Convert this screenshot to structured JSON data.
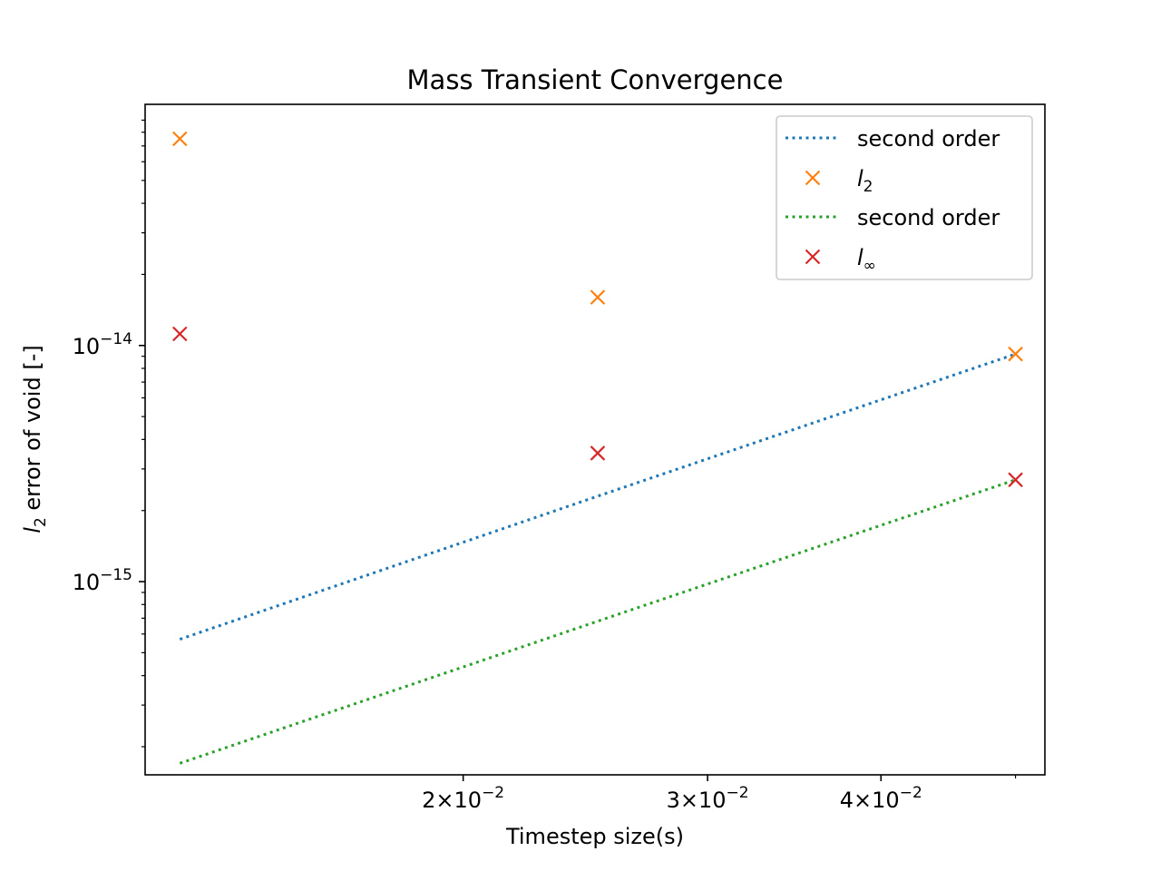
{
  "chart_data": {
    "type": "scatter",
    "title": "Mass Transient Convergence",
    "xlabel": "Timestep size(s)",
    "ylabel_symbol": "l",
    "ylabel_sub": "2",
    "ylabel_rest": " error of void [-]",
    "xscale": "log",
    "yscale": "log",
    "xlim": [
      0.0118,
      0.0525
    ],
    "ylim": [
      1.52e-16,
      1.05e-13
    ],
    "x_ticks": [
      {
        "value": 0.02,
        "mantissa": "2",
        "exp": "−2"
      },
      {
        "value": 0.03,
        "mantissa": "3",
        "exp": "−2"
      },
      {
        "value": 0.04,
        "mantissa": "4",
        "exp": "−2"
      }
    ],
    "y_ticks": [
      {
        "value": 1e-15,
        "base": "10",
        "exp": "−15"
      },
      {
        "value": 1e-14,
        "base": "10",
        "exp": "−14"
      }
    ],
    "x_minor_ticks": [
      0.05
    ],
    "y_minor_ticks": [
      2e-16,
      3e-16,
      4e-16,
      5e-16,
      6e-16,
      7e-16,
      8e-16,
      9e-16,
      2e-15,
      3e-15,
      4e-15,
      5e-15,
      6e-15,
      7e-15,
      8e-15,
      9e-15,
      2e-14,
      3e-14,
      4e-14,
      5e-14,
      6e-14,
      7e-14,
      8e-14,
      9e-14
    ],
    "series": [
      {
        "name": "second order",
        "style": "dotted-line",
        "color": "#1f77b4",
        "x": [
          0.0125,
          0.025,
          0.05
        ],
        "y": [
          5.7e-16,
          2.3e-15,
          9.2e-15
        ]
      },
      {
        "name": "l",
        "name_sub": "2",
        "style": "x-marker",
        "color": "#ff7f0e",
        "x": [
          0.0125,
          0.025,
          0.05
        ],
        "y": [
          7.5e-14,
          1.6e-14,
          9.2e-15
        ]
      },
      {
        "name": "second order",
        "style": "dotted-line",
        "color": "#2ca02c",
        "x": [
          0.0125,
          0.025,
          0.05
        ],
        "y": [
          1.7e-16,
          6.8e-16,
          2.7e-15
        ]
      },
      {
        "name": "l",
        "name_sub": "∞",
        "style": "x-marker",
        "color": "#d62728",
        "x": [
          0.0125,
          0.025,
          0.05
        ],
        "y": [
          1.12e-14,
          3.5e-15,
          2.7e-15
        ]
      }
    ],
    "legend": {
      "position": "upper-right"
    },
    "grid": false
  }
}
